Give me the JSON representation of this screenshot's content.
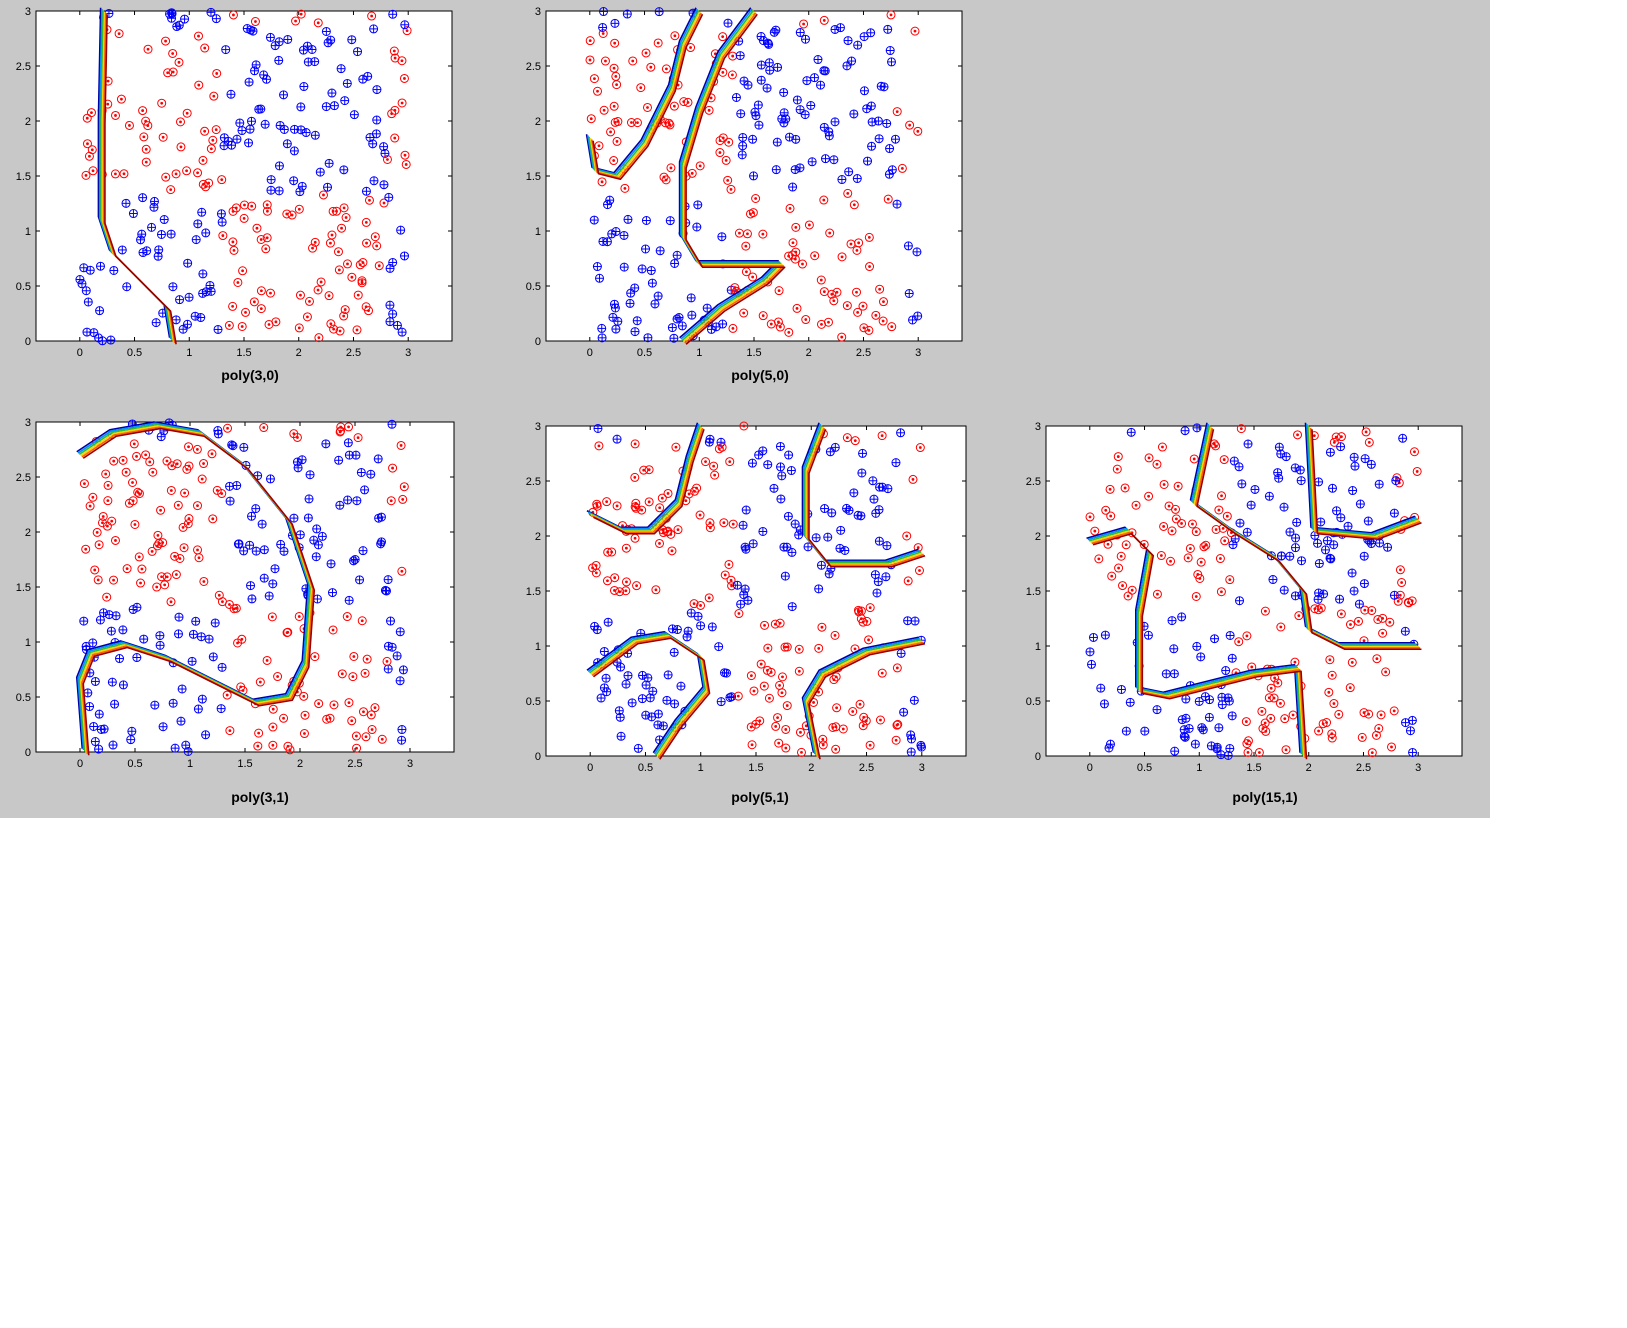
{
  "figure": {
    "background": "#c8c8c8",
    "plot_background": "#ffffff"
  },
  "colors": {
    "class_red": "#ff0000",
    "class_blue": "#0000ff",
    "boundary_bands": [
      "#0000aa",
      "#0090ff",
      "#2fbf2f",
      "#ffd000",
      "#ff6000",
      "#990000"
    ]
  },
  "chart_data": [
    {
      "type": "scatter",
      "title": "poly(3,0)",
      "xlim": [
        -0.4,
        3.4
      ],
      "ylim": [
        0,
        3
      ],
      "xticks": [
        "0",
        "0.5",
        "1",
        "1.5",
        "2",
        "2.5",
        "3"
      ],
      "yticks": [
        "0",
        "0.5",
        "1",
        "1.5",
        "2",
        "2.5",
        "3"
      ],
      "seed": 11,
      "boundaries": [
        [
          [
            0.85,
            0
          ],
          [
            0.8,
            0.3
          ],
          [
            0.6,
            0.5
          ],
          [
            0.3,
            0.8
          ],
          [
            0.2,
            1.1
          ],
          [
            0.2,
            2.0
          ],
          [
            0.22,
            3.0
          ]
        ]
      ]
    },
    {
      "type": "scatter",
      "title": "poly(5,0)",
      "xlim": [
        -0.4,
        3.4
      ],
      "ylim": [
        0,
        3
      ],
      "xticks": [
        "0",
        "0.5",
        "1",
        "1.5",
        "2",
        "2.5",
        "3"
      ],
      "yticks": [
        "0",
        "0.5",
        "1",
        "1.5",
        "2",
        "2.5",
        "3"
      ],
      "seed": 23,
      "boundaries": [
        [
          [
            0.0,
            1.85
          ],
          [
            0.05,
            1.55
          ],
          [
            0.25,
            1.5
          ],
          [
            0.5,
            1.8
          ],
          [
            0.75,
            2.3
          ],
          [
            0.85,
            2.7
          ],
          [
            1.0,
            3.0
          ]
        ],
        [
          [
            0.85,
            0
          ],
          [
            1.2,
            0.3
          ],
          [
            1.6,
            0.55
          ],
          [
            1.75,
            0.7
          ],
          [
            1.3,
            0.7
          ],
          [
            1.0,
            0.7
          ],
          [
            0.85,
            0.95
          ],
          [
            0.85,
            1.6
          ],
          [
            1.0,
            2.1
          ],
          [
            1.2,
            2.6
          ],
          [
            1.5,
            3.0
          ]
        ]
      ]
    },
    {
      "type": "scatter",
      "title": "poly(3,1)",
      "xlim": [
        -0.4,
        3.4
      ],
      "ylim": [
        0,
        3
      ],
      "xticks": [
        "0",
        "0.5",
        "1",
        "1.5",
        "2",
        "2.5",
        "3"
      ],
      "yticks": [
        "0",
        "0.5",
        "1",
        "1.5",
        "2",
        "2.5",
        "3"
      ],
      "seed": 37,
      "boundaries": [
        [
          [
            0.0,
            2.7
          ],
          [
            0.3,
            2.9
          ],
          [
            0.7,
            2.97
          ],
          [
            1.1,
            2.9
          ],
          [
            1.5,
            2.6
          ],
          [
            1.9,
            2.1
          ],
          [
            2.1,
            1.5
          ],
          [
            2.05,
            0.8
          ],
          [
            1.9,
            0.5
          ],
          [
            1.6,
            0.45
          ],
          [
            1.3,
            0.6
          ],
          [
            0.8,
            0.85
          ],
          [
            0.4,
            0.98
          ],
          [
            0.1,
            0.9
          ],
          [
            0.0,
            0.65
          ],
          [
            0.05,
            0.0
          ]
        ]
      ]
    },
    {
      "type": "scatter",
      "title": "poly(5,1)",
      "xlim": [
        -0.4,
        3.4
      ],
      "ylim": [
        0,
        3
      ],
      "xticks": [
        "0",
        "0.5",
        "1",
        "1.5",
        "2",
        "2.5",
        "3"
      ],
      "yticks": [
        "0",
        "0.5",
        "1",
        "1.5",
        "2",
        "2.5",
        "3"
      ],
      "seed": 53,
      "boundaries": [
        [
          [
            0.0,
            2.2
          ],
          [
            0.3,
            2.05
          ],
          [
            0.55,
            2.05
          ],
          [
            0.8,
            2.3
          ],
          [
            0.9,
            2.7
          ],
          [
            1.0,
            3.0
          ]
        ],
        [
          [
            2.1,
            3.0
          ],
          [
            1.95,
            2.6
          ],
          [
            1.95,
            2.0
          ],
          [
            2.15,
            1.75
          ],
          [
            2.7,
            1.75
          ],
          [
            3.0,
            1.85
          ]
        ],
        [
          [
            0.0,
            0.75
          ],
          [
            0.4,
            1.05
          ],
          [
            0.7,
            1.1
          ],
          [
            1.0,
            0.9
          ],
          [
            1.05,
            0.6
          ],
          [
            0.8,
            0.3
          ],
          [
            0.6,
            0.0
          ]
        ],
        [
          [
            2.05,
            0
          ],
          [
            1.95,
            0.5
          ],
          [
            2.1,
            0.75
          ],
          [
            2.5,
            0.95
          ],
          [
            3.0,
            1.05
          ]
        ]
      ]
    },
    {
      "type": "scatter",
      "title": "poly(15,1)",
      "xlim": [
        -0.4,
        3.4
      ],
      "ylim": [
        0,
        3
      ],
      "xticks": [
        "0",
        "0.5",
        "1",
        "1.5",
        "2",
        "2.5",
        "3"
      ],
      "yticks": [
        "0",
        "0.5",
        "1",
        "1.5",
        "2",
        "2.5",
        "3"
      ],
      "seed": 71,
      "boundaries": [
        [
          [
            1.1,
            3.0
          ],
          [
            0.95,
            2.3
          ],
          [
            1.3,
            2.05
          ],
          [
            1.7,
            1.8
          ],
          [
            1.95,
            1.5
          ],
          [
            2.0,
            1.15
          ],
          [
            2.3,
            1.0
          ],
          [
            3.0,
            1.0
          ]
        ],
        [
          [
            2.0,
            3.0
          ],
          [
            2.05,
            2.05
          ],
          [
            2.6,
            2.0
          ],
          [
            3.0,
            2.15
          ]
        ],
        [
          [
            0.0,
            1.95
          ],
          [
            0.35,
            2.05
          ],
          [
            0.55,
            1.85
          ],
          [
            0.45,
            1.3
          ],
          [
            0.45,
            0.6
          ],
          [
            0.7,
            0.55
          ],
          [
            1.1,
            0.65
          ],
          [
            1.5,
            0.75
          ],
          [
            1.9,
            0.8
          ],
          [
            1.95,
            0.0
          ]
        ]
      ]
    }
  ]
}
